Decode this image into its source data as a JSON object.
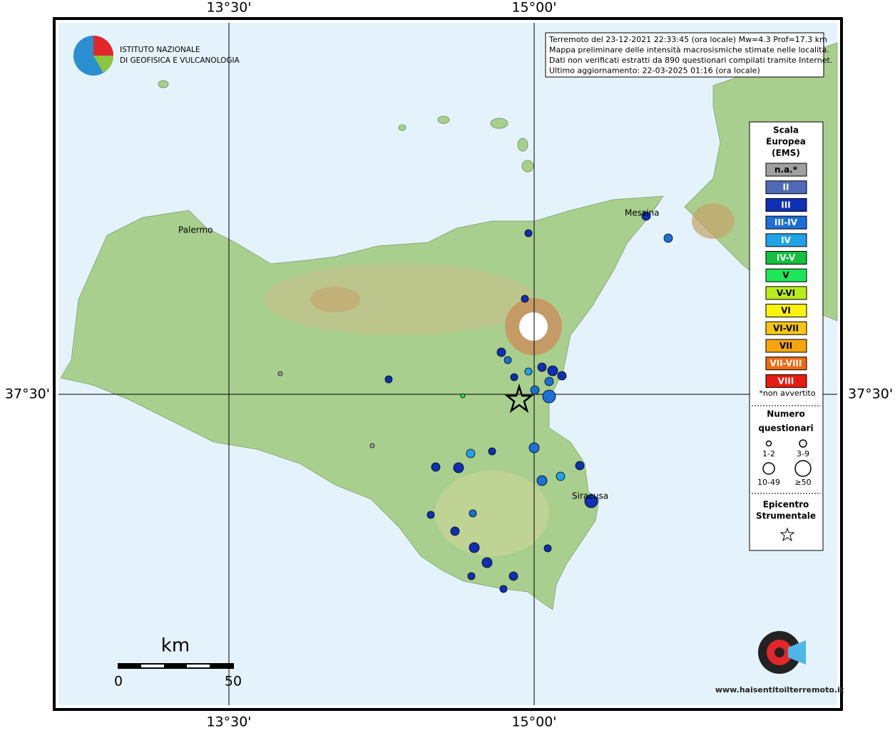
{
  "logo": {
    "line1": "ISTITUTO NAZIONALE",
    "line2": "DI GEOFISICA E VULCANOLOGIA"
  },
  "info": {
    "lines": [
      "Terremoto del 23-12-2021 22:33:45 (ora locale) Mw=4.3 Prof=17.3 km",
      "Mappa preliminare delle intensità macrosismiche stimate nelle località.",
      "Dati non verificati estratti da 890 questionari compilati tramite Internet.",
      "Ultimo aggiornamento: 22-03-2025 01:16 (ora locale)"
    ]
  },
  "axes": {
    "top": [
      "13°30'",
      "15°00'"
    ],
    "bottom": [
      "13°30'",
      "15°00'"
    ],
    "left": "37°30'",
    "right": "37°30'"
  },
  "places": [
    "Palermo",
    "Messina",
    "Siracusa"
  ],
  "scale_bar": {
    "unit": "km",
    "labels": [
      "0",
      "50"
    ]
  },
  "legend": {
    "title": [
      "Scala",
      "Europea",
      "(EMS)"
    ],
    "classes": [
      {
        "label": "n.a.*",
        "color": "#a0a0a0"
      },
      {
        "label": "II",
        "color": "#4f6bb6"
      },
      {
        "label": "III",
        "color": "#0f2fb5"
      },
      {
        "label": "III-IV",
        "color": "#1c6fd6"
      },
      {
        "label": "IV",
        "color": "#1fa3e6"
      },
      {
        "label": "IV-V",
        "color": "#13c040"
      },
      {
        "label": "V",
        "color": "#1ee65a"
      },
      {
        "label": "V-VI",
        "color": "#b9ec1a"
      },
      {
        "label": "VI",
        "color": "#fbf20d"
      },
      {
        "label": "VI-VII",
        "color": "#f7c511"
      },
      {
        "label": "VII",
        "color": "#f7a40c"
      },
      {
        "label": "VII-VIII",
        "color": "#f06a10"
      },
      {
        "label": "VIII",
        "color": "#e81b10"
      }
    ],
    "note": "*non avvertito",
    "count_title": [
      "Numero",
      "questionari"
    ],
    "count_labels": [
      "1-2",
      "3-9",
      "10-49",
      "≥50"
    ],
    "epicenter_title": [
      "Epicentro",
      "Strumentale"
    ]
  },
  "watermark": "www.haisentitoilterremoto.it"
}
